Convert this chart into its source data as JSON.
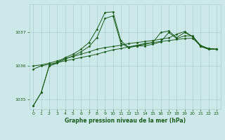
{
  "title": "Graphe pression niveau de la mer (hPa)",
  "background_color": "#cce8e8",
  "grid_color": "#aacfcf",
  "line_color": "#1a5c1a",
  "xlim": [
    -0.5,
    23.5
  ],
  "ylim": [
    1034.7,
    1037.85
  ],
  "yticks": [
    1035,
    1036,
    1037
  ],
  "xticks": [
    0,
    1,
    2,
    3,
    4,
    5,
    6,
    7,
    8,
    9,
    10,
    11,
    12,
    13,
    14,
    15,
    16,
    17,
    18,
    19,
    20,
    21,
    22,
    23
  ],
  "series": [
    [
      1034.8,
      1035.2,
      1036.0,
      1036.1,
      1036.25,
      1036.35,
      1036.5,
      1036.7,
      1037.1,
      1037.6,
      1037.62,
      1036.75,
      1036.55,
      1036.6,
      1036.65,
      1036.7,
      1037.0,
      1037.05,
      1036.85,
      1037.0,
      1036.88,
      1036.58,
      1036.5,
      1036.5
    ],
    [
      1035.9,
      1036.0,
      1036.05,
      1036.1,
      1036.15,
      1036.2,
      1036.25,
      1036.3,
      1036.35,
      1036.42,
      1036.48,
      1036.52,
      1036.57,
      1036.62,
      1036.67,
      1036.7,
      1036.73,
      1036.76,
      1036.79,
      1036.82,
      1036.83,
      1036.6,
      1036.52,
      1036.5
    ],
    [
      1034.8,
      1035.2,
      1036.0,
      1036.08,
      1036.2,
      1036.3,
      1036.42,
      1036.58,
      1036.85,
      1037.42,
      1037.5,
      1036.68,
      1036.55,
      1036.6,
      1036.6,
      1036.65,
      1036.72,
      1037.0,
      1036.82,
      1036.9,
      1036.9,
      1036.6,
      1036.5,
      1036.5
    ],
    [
      1036.0,
      1036.03,
      1036.08,
      1036.15,
      1036.22,
      1036.28,
      1036.35,
      1036.42,
      1036.5,
      1036.55,
      1036.58,
      1036.62,
      1036.67,
      1036.7,
      1036.73,
      1036.76,
      1036.8,
      1036.84,
      1036.95,
      1037.03,
      1036.88,
      1036.62,
      1036.52,
      1036.5
    ]
  ]
}
